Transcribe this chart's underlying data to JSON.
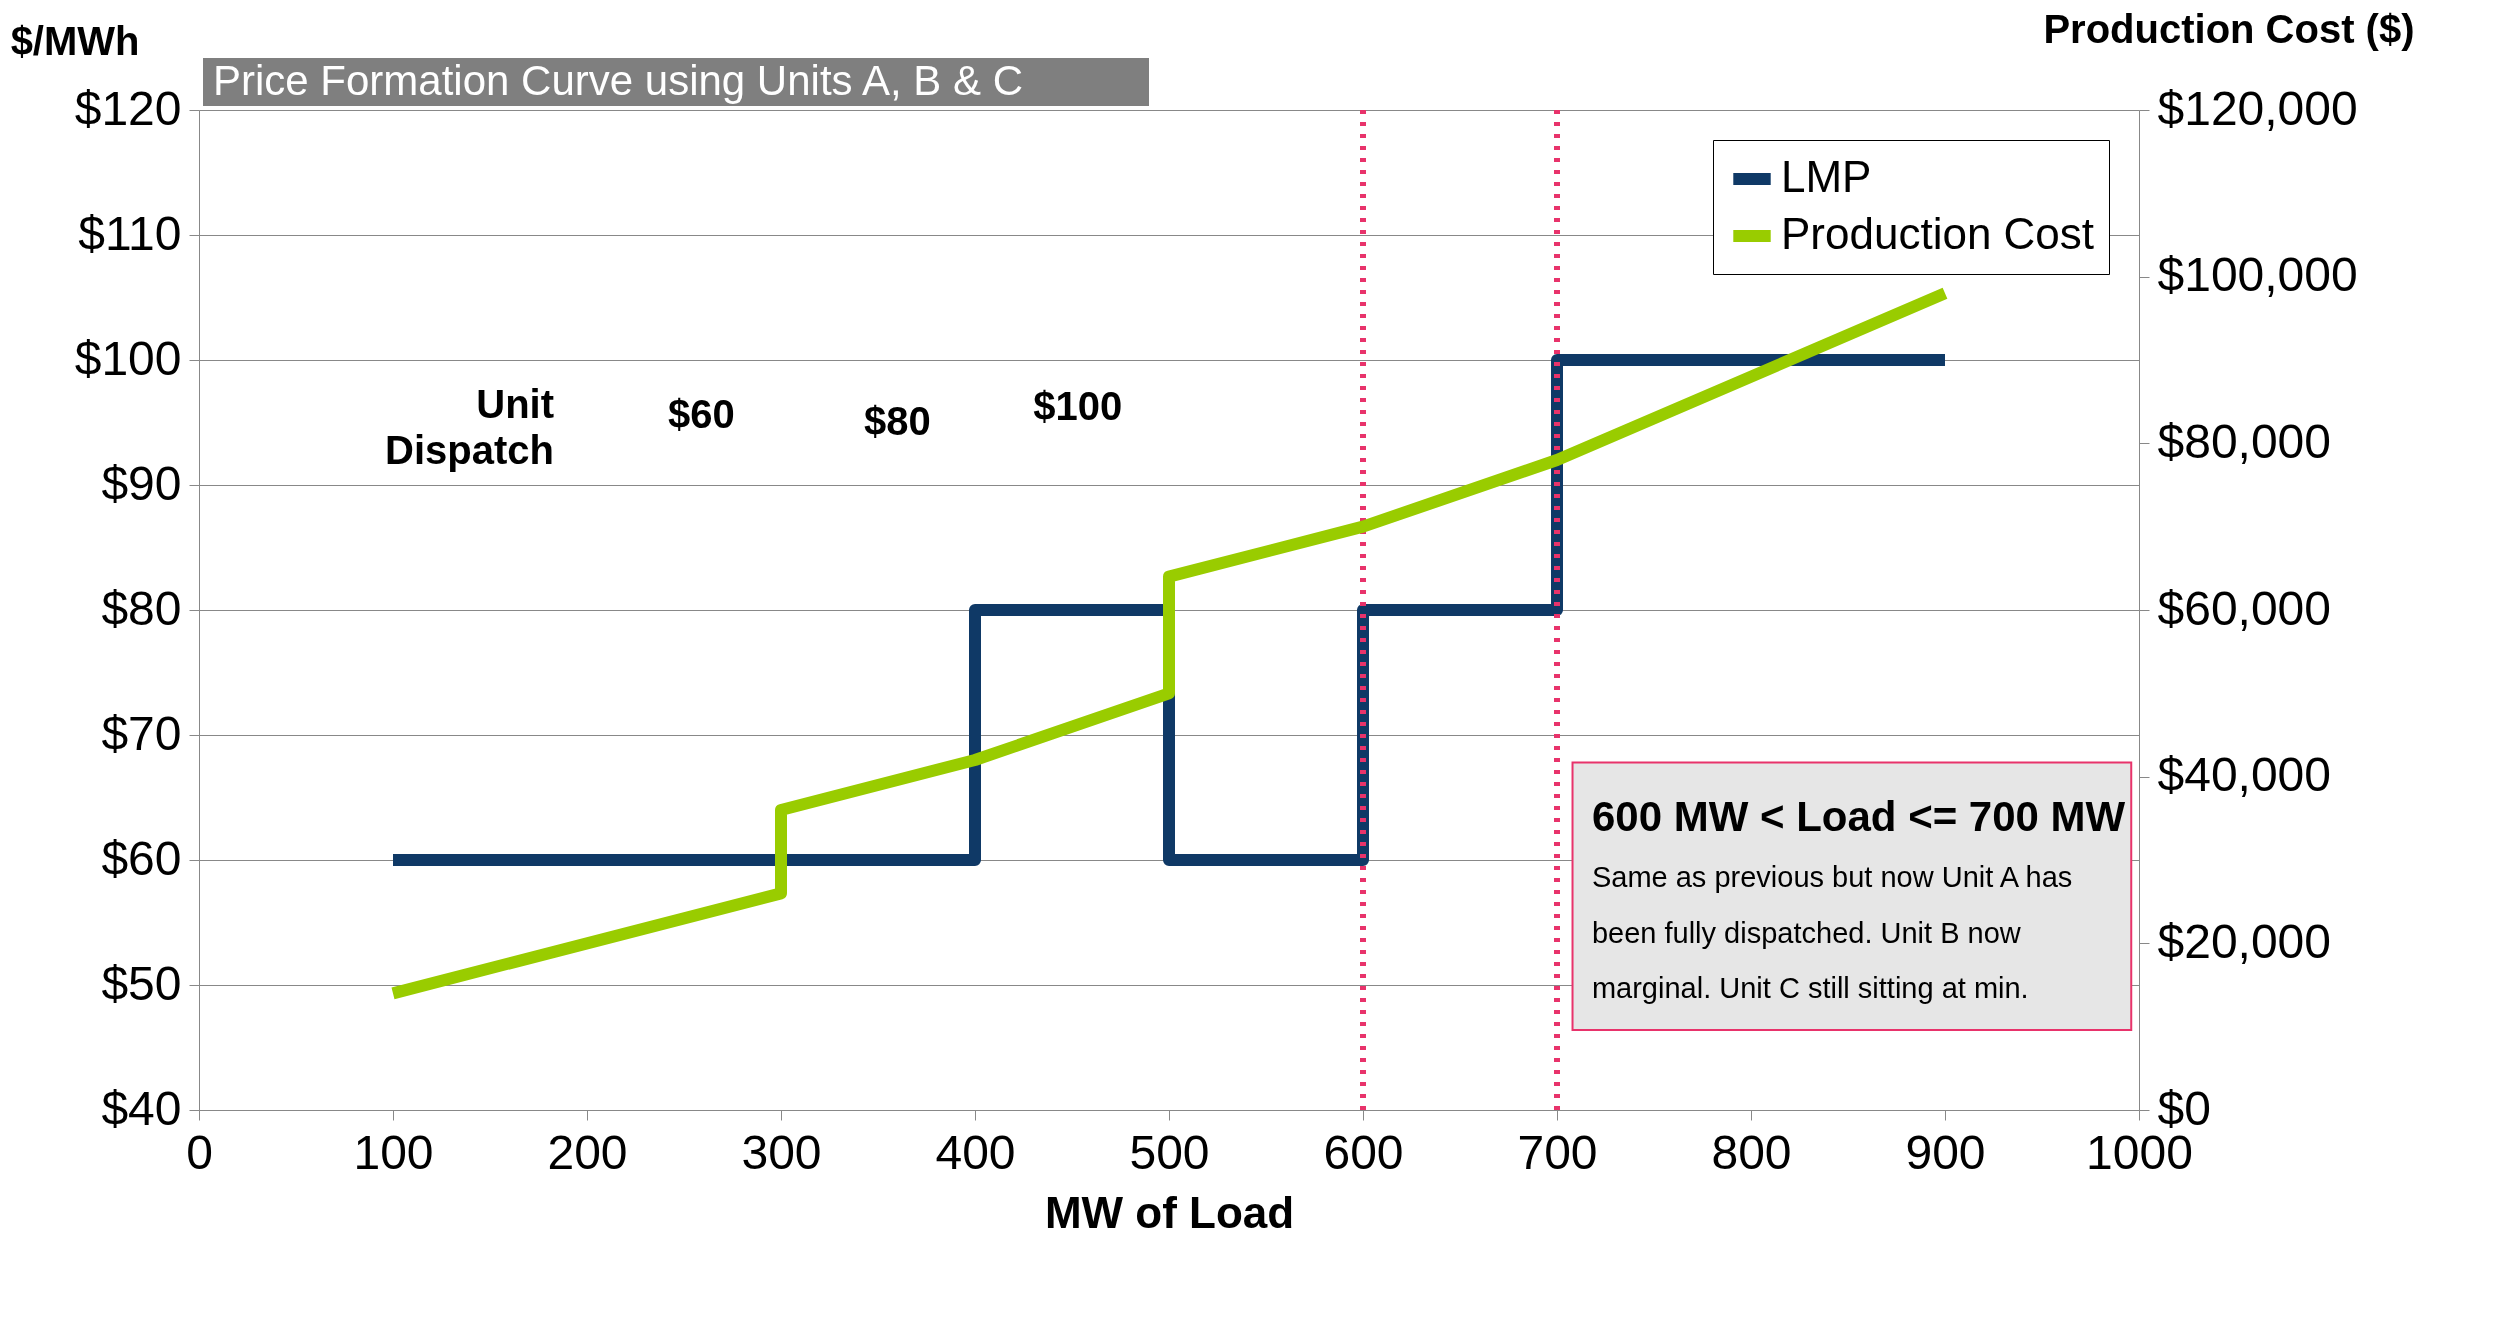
{
  "chart_data": {
    "type": "line",
    "title": "Price Formation Curve using Units A, B & C",
    "xlabel": "MW of Load",
    "ylabel": "$/MWh",
    "y2label": "Production Cost ($)",
    "xlim": [
      0,
      1000
    ],
    "xticks": [
      0,
      100,
      200,
      300,
      400,
      500,
      600,
      700,
      800,
      900,
      1000
    ],
    "ylim": [
      40,
      120
    ],
    "yticks": [
      {
        "value": 40,
        "label": "$40"
      },
      {
        "value": 50,
        "label": "$50"
      },
      {
        "value": 60,
        "label": "$60"
      },
      {
        "value": 70,
        "label": "$70"
      },
      {
        "value": 80,
        "label": "$80"
      },
      {
        "value": 90,
        "label": "$90"
      },
      {
        "value": 100,
        "label": "$100"
      },
      {
        "value": 110,
        "label": "$110"
      },
      {
        "value": 120,
        "label": "$120"
      }
    ],
    "y2lim": [
      0,
      120000
    ],
    "y2ticks": [
      {
        "value": 0,
        "label": "$0"
      },
      {
        "value": 20000,
        "label": "$20,000"
      },
      {
        "value": 40000,
        "label": "$40,000"
      },
      {
        "value": 60000,
        "label": "$60,000"
      },
      {
        "value": 80000,
        "label": "$80,000"
      },
      {
        "value": 100000,
        "label": "$100,000"
      },
      {
        "value": 120000,
        "label": "$120,000"
      }
    ],
    "series": [
      {
        "name": "LMP",
        "color": "#0f3966",
        "x": [
          100,
          400,
          400,
          500,
          500,
          600,
          600,
          700,
          700,
          900
        ],
        "values": [
          60,
          60,
          80,
          80,
          60,
          60,
          80,
          80,
          100,
          100
        ]
      },
      {
        "name": "Production Cost",
        "color": "#99cc00",
        "axis": "y2",
        "x": [
          100,
          300,
          300,
          400,
          500,
          500,
          600,
          700,
          900
        ],
        "values": [
          14000,
          26000,
          36000,
          42000,
          50000,
          64000,
          70000,
          78000,
          98000
        ]
      }
    ],
    "ref_lines": [
      {
        "axis": "x",
        "value": 600,
        "color": "#e8336b",
        "line_style": "dotted"
      },
      {
        "axis": "x",
        "value": 700,
        "color": "#e8336b",
        "line_style": "dotted"
      }
    ],
    "annotations": [
      "Unit Dispatch",
      "$60",
      "$80",
      "$100",
      "600 MW < Load <= 700 MW",
      "Same as previous but now Unit A has",
      "been fully dispatched. Unit B now",
      "marginal. Unit C still sitting at min."
    ],
    "grid": "y",
    "legend": "top right"
  }
}
